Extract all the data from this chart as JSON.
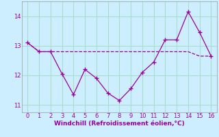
{
  "xlabel": "Windchill (Refroidissement éolien,°C)",
  "x_data": [
    0,
    1,
    2,
    3,
    4,
    5,
    6,
    7,
    8,
    9,
    10,
    11,
    12,
    13,
    14,
    15,
    16
  ],
  "y_line1": [
    13.1,
    12.8,
    12.8,
    12.05,
    11.35,
    12.2,
    11.9,
    11.4,
    11.15,
    11.55,
    12.1,
    12.45,
    13.2,
    13.2,
    14.15,
    13.45,
    12.65
  ],
  "y_line2": [
    13.1,
    12.8,
    12.8,
    12.8,
    12.8,
    12.8,
    12.8,
    12.8,
    12.8,
    12.8,
    12.8,
    12.8,
    12.8,
    12.8,
    12.8,
    12.65,
    12.65
  ],
  "line_color": "#990099",
  "background_color": "#cceeff",
  "grid_color": "#aaddcc",
  "text_color": "#990099",
  "ylim": [
    10.75,
    14.5
  ],
  "yticks": [
    11,
    12,
    13,
    14
  ],
  "xlim": [
    -0.5,
    16.5
  ],
  "xticks": [
    0,
    1,
    2,
    3,
    4,
    5,
    6,
    7,
    8,
    9,
    10,
    11,
    12,
    13,
    14,
    15,
    16
  ]
}
